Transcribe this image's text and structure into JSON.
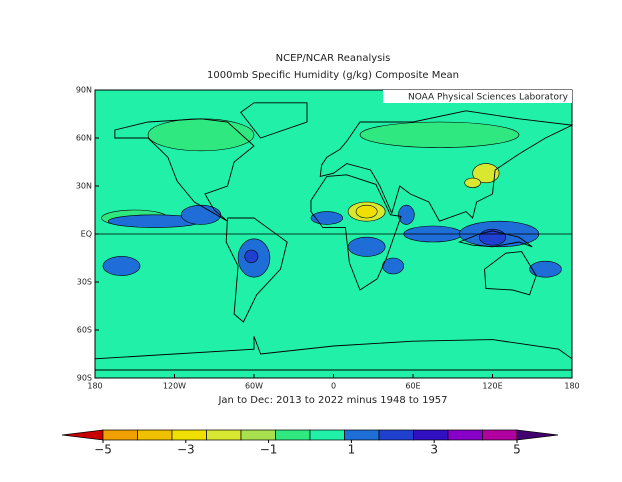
{
  "header": {
    "title": "NCEP/NCAR Reanalysis",
    "subtitle": "1000mb Specific Humidity (g/kg) Composite Mean",
    "credit": "NOAA Physical Sciences Laboratory"
  },
  "map": {
    "lon_ticks": [
      {
        "value": -180,
        "label": "180"
      },
      {
        "value": -120,
        "label": "120W"
      },
      {
        "value": -60,
        "label": "60W"
      },
      0,
      {
        "value": 60,
        "label": "60E"
      },
      {
        "value": 120,
        "label": "120E"
      },
      {
        "value": 180,
        "label": "180"
      }
    ],
    "lat_ticks": [
      {
        "value": 90,
        "label": "90N"
      },
      {
        "value": 60,
        "label": "60N"
      },
      {
        "value": 30,
        "label": "30N"
      },
      {
        "value": 0,
        "label": "EQ"
      },
      {
        "value": -30,
        "label": "30S"
      },
      {
        "value": -60,
        "label": "60S"
      },
      {
        "value": -90,
        "label": "90S"
      }
    ],
    "caption": "Jan to Dec: 2013 to 2022 minus 1948 to 1957"
  },
  "colorbar": {
    "range": [
      -5,
      5
    ],
    "ticks": [
      {
        "value": -5,
        "label": "−5"
      },
      {
        "value": -3,
        "label": "−3"
      },
      {
        "value": -1,
        "label": "−1"
      },
      1,
      3,
      5
    ],
    "colors": [
      "#c80000",
      "#f0a000",
      "#f0c000",
      "#f0e000",
      "#d8e830",
      "#a8e050",
      "#30e880",
      "#20f0a8",
      "#1f6ed8",
      "#2040d0",
      "#3010c0",
      "#8800c8",
      "#b000a0",
      "#400070"
    ]
  }
}
